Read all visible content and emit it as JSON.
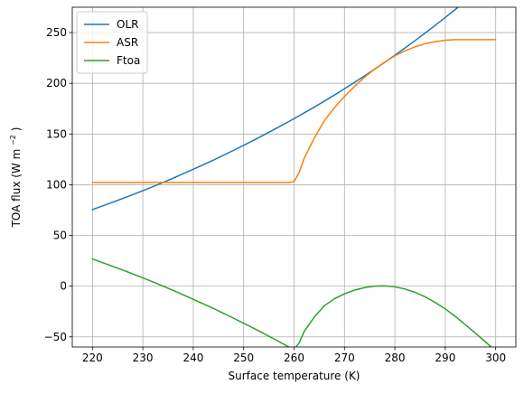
{
  "chart_data": {
    "type": "line",
    "title": "",
    "xlabel": "Surface temperature (K)",
    "ylabel_prefix": "TOA flux (W m",
    "ylabel_superscript": "−2",
    "ylabel_suffix": ")",
    "xlim": [
      216,
      304
    ],
    "ylim": [
      -60,
      275
    ],
    "xticks": [
      220,
      230,
      240,
      250,
      260,
      270,
      280,
      290,
      300
    ],
    "yticks": [
      -50,
      0,
      50,
      100,
      150,
      200,
      250
    ],
    "xtick_labels": [
      "220",
      "230",
      "240",
      "250",
      "260",
      "270",
      "280",
      "290",
      "300"
    ],
    "ytick_labels": [
      "−50",
      "0",
      "50",
      "100",
      "150",
      "200",
      "250"
    ],
    "grid": true,
    "legend_position": "upper-left",
    "x": [
      220,
      224,
      228,
      232,
      236,
      240,
      244,
      248,
      252,
      256,
      259,
      260,
      261,
      262,
      264,
      266,
      268,
      270,
      272,
      274,
      276,
      278,
      280,
      282,
      284,
      286,
      288,
      290,
      292,
      294,
      296,
      298,
      300
    ],
    "series": [
      {
        "name": "OLR",
        "color": "#1f77b4",
        "values": [
          75.5,
          82.7,
          90.2,
          98.1,
          106.4,
          115.2,
          124.3,
          133.9,
          143.9,
          154.3,
          162.4,
          165.2,
          168.0,
          170.8,
          176.5,
          182.4,
          188.4,
          194.6,
          200.9,
          207.4,
          214.0,
          220.8,
          227.7,
          234.8,
          242.1,
          249.5,
          257.1,
          264.9,
          272.9,
          281.1,
          289.5,
          298.1,
          306.9
        ]
      },
      {
        "name": "ASR",
        "color": "#ff7f0e",
        "values": [
          102.3,
          102.3,
          102.3,
          102.3,
          102.3,
          102.3,
          102.3,
          102.3,
          102.3,
          102.3,
          102.3,
          103.0,
          112.0,
          126.0,
          146.0,
          163.0,
          176.0,
          187.0,
          197.0,
          206.0,
          214.0,
          221.0,
          227.0,
          232.0,
          236.0,
          239.0,
          241.0,
          242.5,
          243.0,
          243.0,
          243.0,
          243.0,
          243.0
        ]
      },
      {
        "name": "Ftoa",
        "color": "#2ca02c",
        "values": [
          26.8,
          19.6,
          12.1,
          4.2,
          -4.1,
          -12.9,
          -22.0,
          -31.6,
          -41.6,
          -52.0,
          -60.1,
          -62.2,
          -56.0,
          -44.8,
          -30.5,
          -19.4,
          -12.4,
          -7.6,
          -3.9,
          -1.4,
          0.0,
          0.2,
          -0.7,
          -2.8,
          -6.1,
          -10.5,
          -16.1,
          -22.4,
          -29.9,
          -38.1,
          -46.5,
          -55.1,
          -63.9
        ]
      }
    ]
  }
}
